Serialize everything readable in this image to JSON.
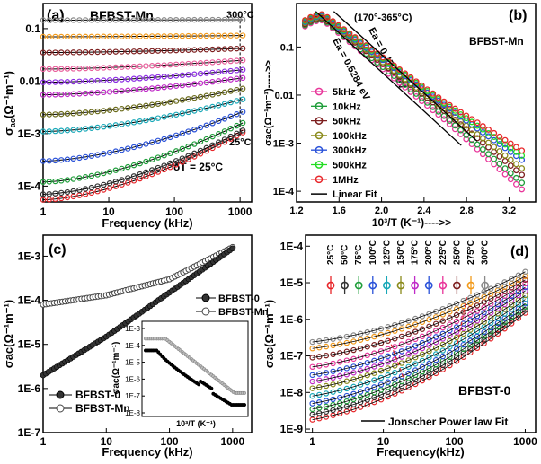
{
  "figure": "Four-panel AC conductivity figure",
  "chart_data": [
    {
      "panel": "(a)",
      "type": "scatter",
      "title": "BFBST-Mn",
      "xlabel": "Frequency (kHz)",
      "ylabel_main": "σ",
      "ylabel_sub": "ac",
      "ylabel_rest": "(Ω⁻¹m⁻¹)",
      "xscale": "log",
      "yscale": "log",
      "xlim": [
        1,
        1500
      ],
      "ylim": [
        5e-05,
        0.3
      ],
      "xticks": [
        "1",
        "10",
        "100",
        "1000"
      ],
      "yticks": [
        "1E-4",
        "1E-3",
        "0.01",
        "0.1"
      ],
      "annotations": [
        "300°C",
        "25°C",
        "δT = 25°C"
      ],
      "temperatures_C": [
        25,
        50,
        75,
        100,
        125,
        150,
        175,
        200,
        225,
        250,
        275,
        300
      ],
      "series": [
        {
          "name": "25°C",
          "low": 5.5e-05,
          "high": 0.00105,
          "color": "#e8262a"
        },
        {
          "name": "50°C",
          "low": 7e-05,
          "high": 0.00115,
          "color": "#333333"
        },
        {
          "name": "75°C",
          "low": 0.00012,
          "high": 0.0016,
          "color": "#1f9e3a"
        },
        {
          "name": "100°C",
          "low": 0.0003,
          "high": 0.0026,
          "color": "#2a52d9"
        },
        {
          "name": "125°C",
          "low": 0.0011,
          "high": 0.0045,
          "color": "#19a8b8"
        },
        {
          "name": "150°C",
          "low": 0.0023,
          "high": 0.0072,
          "color": "#6b6b1a"
        },
        {
          "name": "175°C",
          "low": 0.0055,
          "high": 0.0115,
          "color": "#c02ac8"
        },
        {
          "name": "200°C",
          "low": 0.0095,
          "high": 0.0165,
          "color": "#8a2be2"
        },
        {
          "name": "225°C",
          "low": 0.017,
          "high": 0.025,
          "color": "#e85d9a"
        },
        {
          "name": "250°C",
          "low": 0.035,
          "high": 0.042,
          "color": "#7d1f1f"
        },
        {
          "name": "275°C",
          "low": 0.07,
          "high": 0.074,
          "color": "#f29a1b"
        },
        {
          "name": "300°C",
          "low": 0.145,
          "high": 0.148,
          "color": "#8a8a8a"
        }
      ]
    },
    {
      "panel": "(b)",
      "type": "scatter",
      "title": "BFBST-Mn",
      "xlabel": "10³/T (K⁻¹)---->>",
      "ylabel": "σac(Ω⁻¹m⁻¹)----->>",
      "yscale": "log",
      "xlim": [
        1.2,
        3.45
      ],
      "ylim": [
        6e-05,
        0.8
      ],
      "xticks": [
        "1.2",
        "1.6",
        "2.0",
        "2.4",
        "2.8",
        "3.2"
      ],
      "yticks": [
        "1E-4",
        "1E-3",
        "0.01",
        "0.1"
      ],
      "annotations": [
        "(170°-365°C)",
        "Ea = 0.5284 eV",
        "Ea = 0.4737 eV"
      ],
      "legend": [
        "5kHz",
        "10kHz",
        "50kHz",
        "100kHz",
        "300kHz",
        "500kHz",
        "1MHz",
        "Linear Fit"
      ],
      "series": [
        {
          "name": "5kHz",
          "color": "#e8369a",
          "peak": 0.36,
          "mid": 0.003,
          "end": 0.00011
        },
        {
          "name": "10kHz",
          "color": "#1f9e3a",
          "peak": 0.38,
          "mid": 0.0035,
          "end": 0.00015
        },
        {
          "name": "50kHz",
          "color": "#7d1f1f",
          "peak": 0.4,
          "mid": 0.0045,
          "end": 0.00022
        },
        {
          "name": "100kHz",
          "color": "#8a8a1a",
          "peak": 0.42,
          "mid": 0.005,
          "end": 0.0003
        },
        {
          "name": "300kHz",
          "color": "#2a52d9",
          "peak": 0.44,
          "mid": 0.006,
          "end": 0.00045
        },
        {
          "name": "500kHz",
          "color": "#22dd22",
          "peak": 0.46,
          "mid": 0.0065,
          "end": 0.00055
        },
        {
          "name": "1MHz",
          "color": "#e8262a",
          "peak": 0.48,
          "mid": 0.007,
          "end": 0.0007
        }
      ]
    },
    {
      "panel": "(c)",
      "type": "scatter",
      "xlabel": "Frequency (kHz)",
      "ylabel": "σac(Ω⁻¹m⁻¹)",
      "xscale": "log",
      "yscale": "log",
      "xlim": [
        1,
        2000
      ],
      "ylim": [
        1e-07,
        0.003
      ],
      "xticks": [
        "1",
        "10",
        "100",
        "1000"
      ],
      "yticks": [
        "1E-7",
        "1E-6",
        "1E-5",
        "1E-4",
        "1E-3"
      ],
      "legend": [
        "BFBST-0",
        "BFBST-Mn"
      ],
      "series": [
        {
          "name": "BFBST-0",
          "x": [
            1,
            10,
            100,
            1000
          ],
          "y": [
            2e-06,
            1.5e-05,
            0.00015,
            0.0015
          ]
        },
        {
          "name": "BFBST-Mn",
          "x": [
            1,
            10,
            100,
            1000
          ],
          "y": [
            8e-05,
            0.00013,
            0.0003,
            0.0016
          ]
        }
      ],
      "inset": {
        "xlabel": "10³/T (K⁻¹)",
        "ylabel": "σac(Ω⁻¹m⁻¹)",
        "yticks": [
          "1E-3",
          "1E-4",
          "1E-5",
          "1E-6",
          "1E-7",
          "1E-8"
        ],
        "legend": [
          "BFBST-0",
          "BFBST-Mn"
        ]
      }
    },
    {
      "panel": "(d)",
      "type": "scatter",
      "title": "BFBST-0",
      "xlabel": "Frequency(kHz)",
      "ylabel": "σac(Ω⁻¹m⁻¹)",
      "xscale": "log",
      "yscale": "log",
      "xlim": [
        0.8,
        1400
      ],
      "ylim": [
        8e-10,
        0.0002
      ],
      "xticks": [
        "1",
        "10",
        "100",
        "1000"
      ],
      "yticks": [
        "1E-9",
        "1E-8",
        "1E-7",
        "1E-6",
        "1E-5",
        "1E-4"
      ],
      "legend_fit": "Jonscher Power law Fit",
      "legend_temps": [
        "25°C",
        "50°C",
        "75°C",
        "100°C",
        "125°C",
        "150°C",
        "175°C",
        "200°C",
        "225°C",
        "250°C",
        "275°C",
        "300°C"
      ],
      "series": [
        {
          "name": "25°C",
          "low": 1.8e-09,
          "high": 1.5e-06,
          "color": "#e8262a"
        },
        {
          "name": "50°C",
          "low": 2.5e-09,
          "high": 1.8e-06,
          "color": "#333333"
        },
        {
          "name": "75°C",
          "low": 3.5e-09,
          "high": 2.2e-06,
          "color": "#1f9e3a"
        },
        {
          "name": "100°C",
          "low": 5e-09,
          "high": 2.7e-06,
          "color": "#2a52d9"
        },
        {
          "name": "125°C",
          "low": 8e-09,
          "high": 3.5e-06,
          "color": "#19a8b8"
        },
        {
          "name": "150°C",
          "low": 1.3e-08,
          "high": 4.5e-06,
          "color": "#8a8a1a"
        },
        {
          "name": "175°C",
          "low": 2e-08,
          "high": 6e-06,
          "color": "#c02ac8"
        },
        {
          "name": "200°C",
          "low": 3e-08,
          "high": 7.5e-06,
          "color": "#2a52d9"
        },
        {
          "name": "225°C",
          "low": 5e-08,
          "high": 9.5e-06,
          "color": "#e8369a"
        },
        {
          "name": "250°C",
          "low": 9e-08,
          "high": 1.2e-05,
          "color": "#7d1f1f"
        },
        {
          "name": "275°C",
          "low": 1.6e-07,
          "high": 1.5e-05,
          "color": "#f29a1b"
        },
        {
          "name": "300°C",
          "low": 2.4e-07,
          "high": 2e-05,
          "color": "#8a8a8a"
        }
      ]
    }
  ]
}
